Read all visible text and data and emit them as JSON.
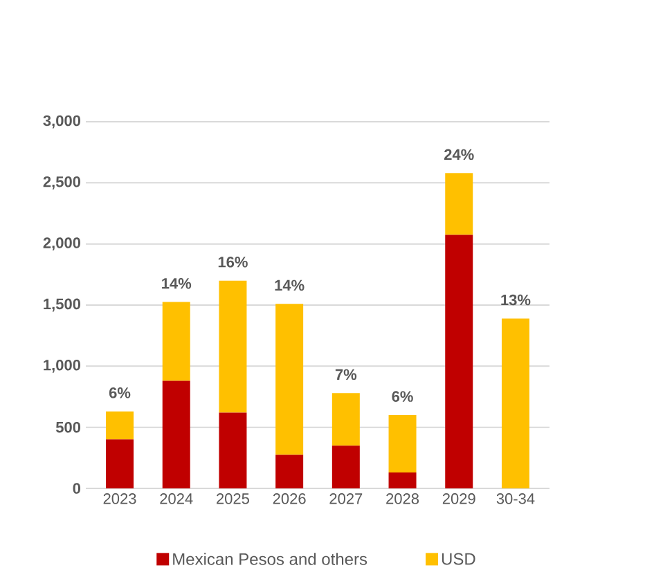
{
  "chart_data": {
    "type": "bar",
    "stacked": true,
    "categories": [
      "2023",
      "2024",
      "2025",
      "2026",
      "2027",
      "2028",
      "2029",
      "30-34"
    ],
    "series": [
      {
        "name": "Mexican Pesos and others",
        "color": "#c00000",
        "values": [
          400,
          880,
          620,
          275,
          350,
          130,
          2075,
          0
        ]
      },
      {
        "name": "USD",
        "color": "#ffc000",
        "values": [
          230,
          645,
          1080,
          1235,
          430,
          470,
          505,
          1390
        ]
      }
    ],
    "ylim": [
      0,
      3000
    ],
    "yticks": [
      {
        "value": 0,
        "label": "0"
      },
      {
        "value": 500,
        "label": "500"
      },
      {
        "value": 1000,
        "label": "1,000"
      },
      {
        "value": 1500,
        "label": "1,500"
      },
      {
        "value": 2000,
        "label": "2,000"
      },
      {
        "value": 2500,
        "label": "2,500"
      },
      {
        "value": 3000,
        "label": "3,000"
      }
    ],
    "grid": "y",
    "legend": "bottom",
    "annotations": [
      {
        "text": "6%",
        "x": "2023",
        "y": 630
      },
      {
        "text": "14%",
        "x": "2024",
        "y": 1525
      },
      {
        "text": "16%",
        "x": "2025",
        "y": 1700
      },
      {
        "text": "14%",
        "x": "2026",
        "y": 1510
      },
      {
        "text": "7%",
        "x": "2027",
        "y": 780
      },
      {
        "text": "6%",
        "x": "2028",
        "y": 600
      },
      {
        "text": "24%",
        "x": "2029",
        "y": 2580
      },
      {
        "text": "13%",
        "x": "30-34",
        "y": 1390
      }
    ]
  }
}
